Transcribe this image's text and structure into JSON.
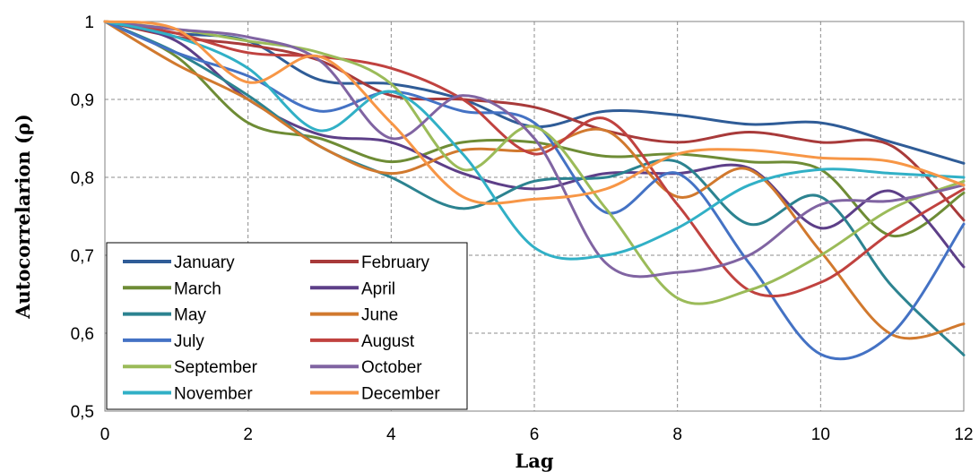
{
  "chart_data": {
    "type": "line",
    "title": "",
    "xlabel": "Lag",
    "ylabel": "Autocorrelarion (ρ)",
    "xlim": [
      0,
      12
    ],
    "ylim": [
      0.5,
      1
    ],
    "x_ticks": [
      0,
      2,
      4,
      6,
      8,
      10,
      12
    ],
    "x_tick_labels": [
      "0",
      "2",
      "4",
      "6",
      "8",
      "10",
      "12"
    ],
    "y_ticks": [
      0.5,
      0.6,
      0.7,
      0.8,
      0.9,
      1
    ],
    "y_tick_labels": [
      "0,5",
      "0,6",
      "0,7",
      "0,8",
      "0,9",
      "1"
    ],
    "grid": true,
    "legend_position": "bottom-left",
    "x": [
      0,
      1,
      2,
      3,
      4,
      5,
      6,
      7,
      8,
      9,
      10,
      11,
      12
    ],
    "series": [
      {
        "name": "January",
        "color": "#2f5c97",
        "values": [
          1,
          0.985,
          0.975,
          0.925,
          0.92,
          0.9,
          0.865,
          0.885,
          0.88,
          0.868,
          0.87,
          0.845,
          0.818
        ]
      },
      {
        "name": "February",
        "color": "#a83a3a",
        "values": [
          1,
          0.98,
          0.97,
          0.95,
          0.905,
          0.9,
          0.89,
          0.86,
          0.845,
          0.858,
          0.845,
          0.84,
          0.745
        ]
      },
      {
        "name": "March",
        "color": "#6e8c35",
        "values": [
          1,
          0.955,
          0.87,
          0.85,
          0.82,
          0.845,
          0.845,
          0.827,
          0.83,
          0.82,
          0.81,
          0.725,
          0.78
        ]
      },
      {
        "name": "April",
        "color": "#5d3f88",
        "values": [
          1,
          0.975,
          0.9,
          0.855,
          0.845,
          0.805,
          0.785,
          0.805,
          0.805,
          0.812,
          0.735,
          0.782,
          0.685
        ]
      },
      {
        "name": "May",
        "color": "#2c8390",
        "values": [
          1,
          0.96,
          0.905,
          0.84,
          0.8,
          0.76,
          0.795,
          0.8,
          0.82,
          0.74,
          0.775,
          0.66,
          0.572
        ]
      },
      {
        "name": "June",
        "color": "#d1792e",
        "values": [
          1,
          0.945,
          0.9,
          0.84,
          0.805,
          0.835,
          0.835,
          0.86,
          0.775,
          0.81,
          0.705,
          0.598,
          0.612
        ]
      },
      {
        "name": "July",
        "color": "#4472c4",
        "values": [
          1,
          0.96,
          0.93,
          0.885,
          0.91,
          0.885,
          0.87,
          0.755,
          0.805,
          0.69,
          0.573,
          0.6,
          0.74
        ]
      },
      {
        "name": "August",
        "color": "#c0423f",
        "values": [
          1,
          0.985,
          0.96,
          0.955,
          0.94,
          0.9,
          0.83,
          0.875,
          0.765,
          0.655,
          0.665,
          0.73,
          0.785
        ]
      },
      {
        "name": "September",
        "color": "#9bbb59",
        "values": [
          1,
          0.99,
          0.975,
          0.96,
          0.92,
          0.81,
          0.865,
          0.76,
          0.645,
          0.655,
          0.7,
          0.76,
          0.795
        ]
      },
      {
        "name": "October",
        "color": "#8064a2",
        "values": [
          1,
          0.99,
          0.98,
          0.95,
          0.85,
          0.905,
          0.85,
          0.69,
          0.678,
          0.7,
          0.765,
          0.77,
          0.79
        ]
      },
      {
        "name": "November",
        "color": "#31b0c6",
        "values": [
          1,
          0.98,
          0.94,
          0.86,
          0.91,
          0.83,
          0.71,
          0.7,
          0.735,
          0.79,
          0.81,
          0.805,
          0.8
        ]
      },
      {
        "name": "December",
        "color": "#f79646",
        "values": [
          1,
          0.99,
          0.922,
          0.955,
          0.87,
          0.775,
          0.772,
          0.785,
          0.83,
          0.835,
          0.825,
          0.82,
          0.79
        ]
      }
    ]
  }
}
